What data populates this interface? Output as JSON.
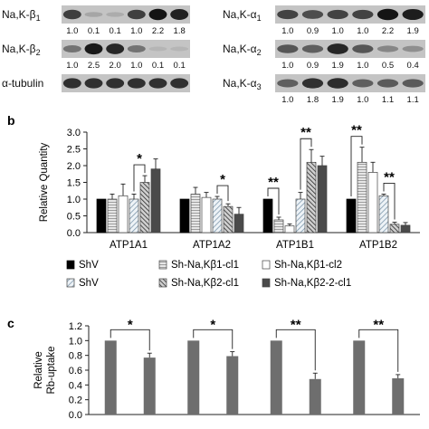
{
  "blots": {
    "left": {
      "rows": [
        {
          "label_main": "Na,K-β",
          "label_sub": "1",
          "values": [
            "1.0",
            "0.1",
            "0.1",
            "1.0",
            "2.2",
            "1.8"
          ],
          "intensity": [
            0.72,
            0.18,
            0.15,
            0.72,
            0.95,
            0.88
          ]
        },
        {
          "label_main": "Na,K-β",
          "label_sub": "2",
          "values": [
            "1.0",
            "2.5",
            "2.0",
            "1.0",
            "0.1",
            "0.1"
          ],
          "intensity": [
            0.45,
            0.92,
            0.85,
            0.45,
            0.1,
            0.1
          ]
        },
        {
          "label_main": "α-tubulin",
          "label_sub": "",
          "values": [],
          "intensity": [
            0.8,
            0.8,
            0.8,
            0.8,
            0.8,
            0.8
          ]
        }
      ]
    },
    "right": {
      "rows": [
        {
          "label_main": "Na,K-α",
          "label_sub": "1",
          "values": [
            "1.0",
            "0.9",
            "1.0",
            "1.0",
            "2.2",
            "1.9"
          ],
          "intensity": [
            0.7,
            0.65,
            0.7,
            0.7,
            0.95,
            0.9
          ]
        },
        {
          "label_main": "Na,K-α",
          "label_sub": "2",
          "values": [
            "1.0",
            "0.9",
            "1.9",
            "1.0",
            "0.5",
            "0.4"
          ],
          "intensity": [
            0.6,
            0.55,
            0.85,
            0.6,
            0.35,
            0.3
          ]
        },
        {
          "label_main": "Na,K-α",
          "label_sub": "3",
          "values": [
            "1.0",
            "1.8",
            "1.9",
            "1.0",
            "1.1",
            "1.1"
          ],
          "intensity": [
            0.55,
            0.8,
            0.82,
            0.55,
            0.58,
            0.58
          ]
        }
      ]
    }
  },
  "panel_b": {
    "letter": "b",
    "chart_data": {
      "type": "bar",
      "ylabel": "Relative Quantity",
      "ylim": [
        0,
        3
      ],
      "yticks": [
        "0.0",
        "0.5",
        "1.0",
        "1.5",
        "2.0",
        "2.5",
        "3.0"
      ],
      "categories": [
        "ATP1A1",
        "ATP1A2",
        "ATP1B1",
        "ATP1B2"
      ],
      "series": [
        {
          "name": "ShV",
          "pattern": "black",
          "values": [
            1.0,
            1.0,
            1.0,
            1.0
          ],
          "errors": [
            0,
            0,
            0,
            0
          ]
        },
        {
          "name": "Sh-Na,Kβ1-cl1",
          "pattern": "hlines",
          "values": [
            1.0,
            1.15,
            0.38,
            2.1
          ],
          "errors": [
            0.15,
            0.2,
            0.08,
            0.45
          ]
        },
        {
          "name": "Sh-Na,Kβ1-cl2",
          "pattern": "white",
          "values": [
            1.1,
            1.05,
            0.2,
            1.8
          ],
          "errors": [
            0.35,
            0.15,
            0.06,
            0.3
          ]
        },
        {
          "name": "ShV",
          "pattern": "lightdiag",
          "values": [
            1.0,
            1.0,
            1.0,
            1.1
          ],
          "errors": [
            0.15,
            0.08,
            0.2,
            0.05
          ]
        },
        {
          "name": "Sh-Na,Kβ2-cl1",
          "pattern": "darkdiag",
          "values": [
            1.5,
            0.78,
            2.1,
            0.25
          ],
          "errors": [
            0.2,
            0.08,
            0.38,
            0.06
          ]
        },
        {
          "name": "Sh-Na,Kβ2-2-cl1",
          "pattern": "darkgray",
          "values": [
            1.9,
            0.55,
            2.0,
            0.22
          ],
          "errors": [
            0.3,
            0.2,
            0.28,
            0.08
          ]
        }
      ],
      "significance": [
        {
          "category": 0,
          "from_series": 3,
          "to_series": 4,
          "label": "*"
        },
        {
          "category": 1,
          "from_series": 3,
          "to_series": 4,
          "label": "*"
        },
        {
          "category": 2,
          "from_series": 0,
          "to_series": 1,
          "label": "**"
        },
        {
          "category": 2,
          "from_series": 3,
          "to_series": 4,
          "label": "**"
        },
        {
          "category": 3,
          "from_series": 0,
          "to_series": 1,
          "label": "**"
        },
        {
          "category": 3,
          "from_series": 3,
          "to_series": 4,
          "label": "**"
        }
      ]
    }
  },
  "panel_c": {
    "letter": "c",
    "chart_data": {
      "type": "bar",
      "ylabel_line1": "Relative",
      "ylabel_line2": "Rb-uptake",
      "ylim": [
        0,
        1.2
      ],
      "yticks": [
        "0.0",
        "0.2",
        "0.4",
        "0.6",
        "0.8",
        "1.0",
        "1.2"
      ],
      "groups": [
        {
          "values": [
            1.0,
            0.77
          ],
          "errors": [
            0,
            0.06
          ],
          "sig": "*"
        },
        {
          "values": [
            1.0,
            0.79
          ],
          "errors": [
            0,
            0.06
          ],
          "sig": "*"
        },
        {
          "values": [
            1.0,
            0.48
          ],
          "errors": [
            0,
            0.08
          ],
          "sig": "**"
        },
        {
          "values": [
            1.0,
            0.49
          ],
          "errors": [
            0,
            0.05
          ],
          "sig": "**"
        }
      ]
    }
  }
}
